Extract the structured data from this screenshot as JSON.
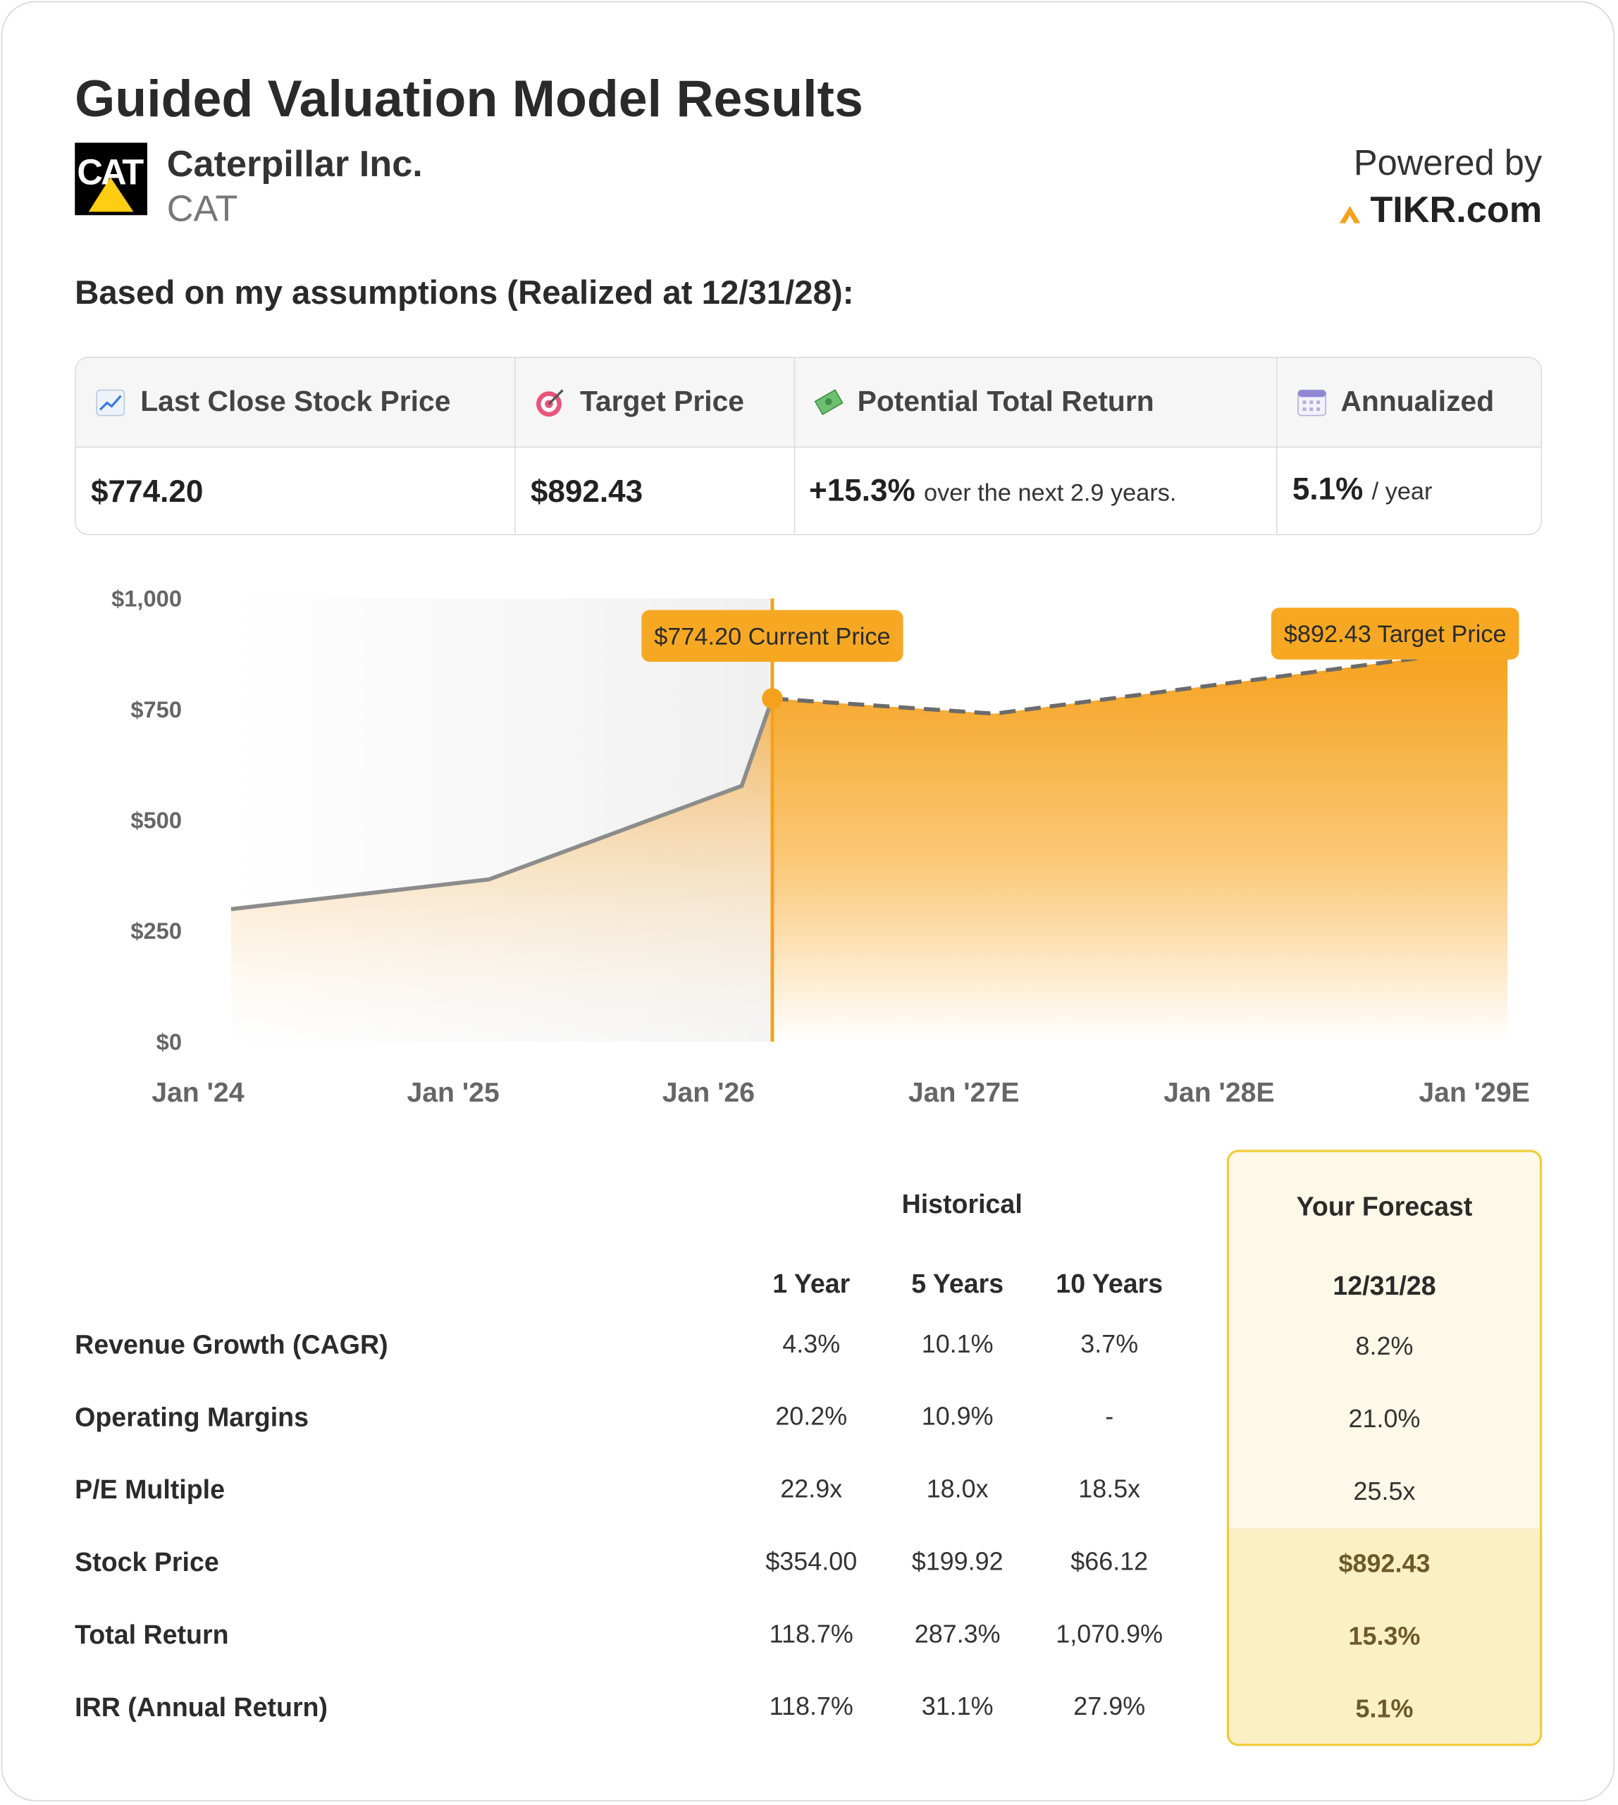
{
  "header": {
    "title": "Guided Valuation Model Results",
    "company": "Caterpillar Inc.",
    "ticker": "CAT",
    "powered_by": "Powered by",
    "brand": "TIKR.com"
  },
  "subtitle": "Based on my assumptions (Realized at 12/31/28):",
  "summary": {
    "headers": [
      "Last Close Stock Price",
      "Target Price",
      "Potential Total Return",
      "Annualized"
    ],
    "cells": [
      {
        "value": "$774.20"
      },
      {
        "value": "$892.43"
      },
      {
        "value": "+15.3%",
        "note": "over the next 2.9 years."
      },
      {
        "value": "5.1%",
        "note": "/ year"
      }
    ]
  },
  "chart_data": {
    "type": "area",
    "xlim": [
      2024,
      2029.13
    ],
    "xticks": [
      {
        "value": 2024,
        "label": "Jan '24"
      },
      {
        "value": 2025,
        "label": "Jan '25"
      },
      {
        "value": 2026,
        "label": "Jan '26"
      },
      {
        "value": 2027,
        "label": "Jan '27E"
      },
      {
        "value": 2028,
        "label": "Jan '28E"
      },
      {
        "value": 2029,
        "label": "Jan '29E"
      }
    ],
    "ylim": [
      0,
      1000
    ],
    "yticks": [
      {
        "value": 0,
        "label": "$0"
      },
      {
        "value": 250,
        "label": "$250"
      },
      {
        "value": 500,
        "label": "$500"
      },
      {
        "value": 750,
        "label": "$750"
      },
      {
        "value": 1000,
        "label": "$1,000"
      }
    ],
    "grid": false,
    "series": [
      {
        "color": "#8c8c8c",
        "fill": "#f2b052",
        "x": [
          2024.13,
          2025.14,
          2026.13,
          2026.25
        ],
        "values": [
          299,
          366,
          577,
          774.2
        ]
      },
      {
        "color": "#6b6b6b",
        "fill": "#f5a11c",
        "line_style": "dashed",
        "x": [
          2026.25,
          2027.12,
          2028.12,
          2029.13
        ],
        "values": [
          774.2,
          740,
          815,
          892.43
        ]
      }
    ],
    "annotations": [
      "$774.20 Current Price",
      "$892.43 Target Price"
    ],
    "annotation_color": "#f7a823"
  },
  "metrics": {
    "group_header": "Historical",
    "columns": [
      "1 Year",
      "5 Years",
      "10 Years"
    ],
    "forecast_header": "Your Forecast",
    "forecast_date": "12/31/28",
    "rows": [
      {
        "label": "Revenue Growth (CAGR)",
        "values": [
          "4.3%",
          "10.1%",
          "3.7%"
        ],
        "forecast": "8.2%"
      },
      {
        "label": "Operating Margins",
        "values": [
          "20.2%",
          "10.9%",
          "-"
        ],
        "forecast": "21.0%"
      },
      {
        "label": "P/E Multiple",
        "values": [
          "22.9x",
          "18.0x",
          "18.5x"
        ],
        "forecast": "25.5x"
      },
      {
        "label": "Stock Price",
        "values": [
          "$354.00",
          "$199.92",
          "$66.12"
        ],
        "forecast": "$892.43"
      },
      {
        "label": "Total Return",
        "values": [
          "118.7%",
          "287.3%",
          "1,070.9%"
        ],
        "forecast": "15.3%"
      },
      {
        "label": "IRR (Annual Return)",
        "values": [
          "118.7%",
          "31.1%",
          "27.9%"
        ],
        "forecast": "5.1%"
      }
    ]
  }
}
